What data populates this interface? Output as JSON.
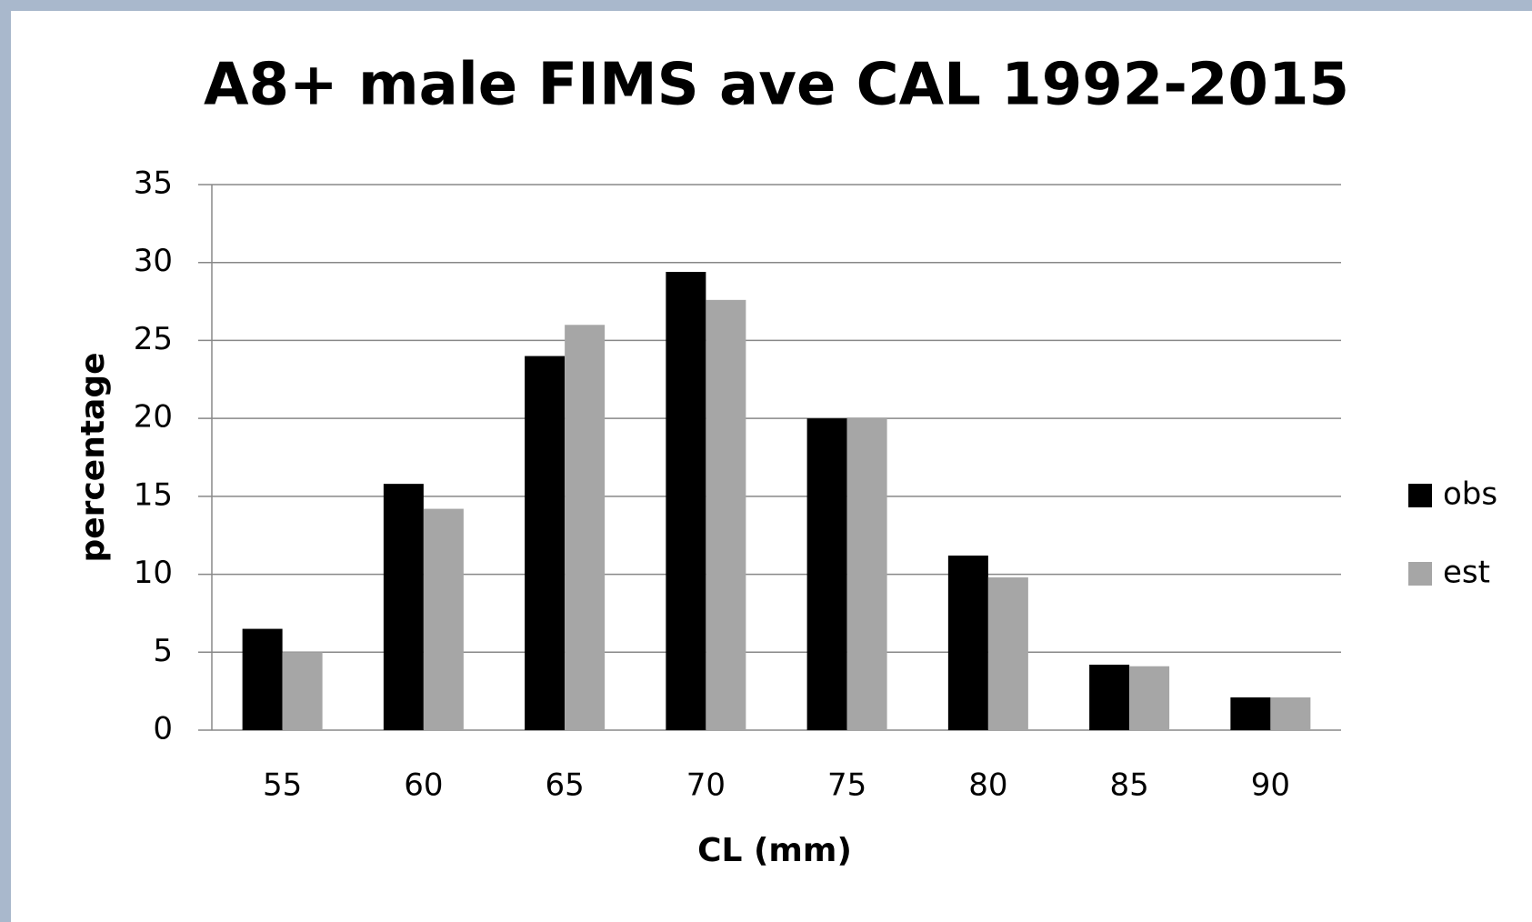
{
  "chart_data": {
    "type": "bar",
    "title": "A8+ male FIMS ave CAL 1992-2015",
    "x_label": "CL (mm)",
    "y_label": "percentage",
    "categories": [
      "55",
      "60",
      "65",
      "70",
      "75",
      "80",
      "85",
      "90"
    ],
    "series": [
      {
        "name": "obs",
        "color": "#000000",
        "values": [
          6.5,
          15.8,
          24,
          29.4,
          20,
          11.2,
          4.2,
          2.1
        ]
      },
      {
        "name": "est",
        "color": "#a6a6a6",
        "values": [
          5,
          14.2,
          26,
          27.6,
          20,
          9.8,
          4.1,
          2.1
        ]
      }
    ],
    "ylim": [
      0,
      35
    ],
    "yticks": [
      0,
      5,
      10,
      15,
      20,
      25,
      30,
      35
    ],
    "grid": true,
    "legend": "right"
  }
}
